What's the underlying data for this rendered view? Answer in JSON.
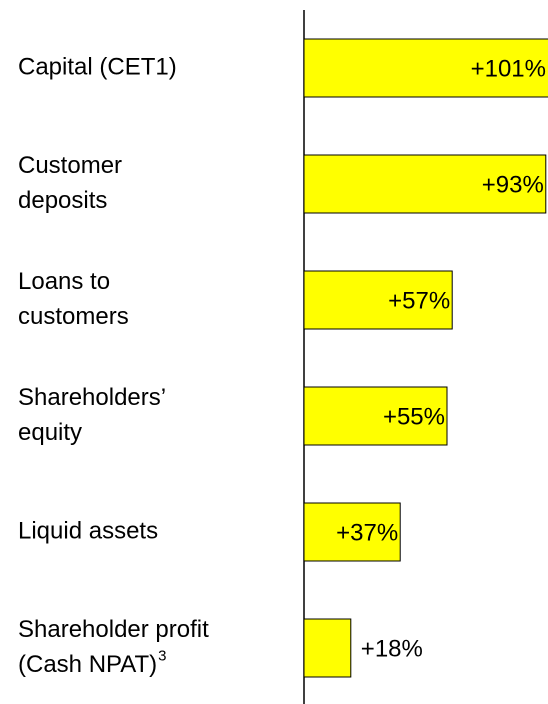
{
  "chart_data": {
    "type": "bar",
    "orientation": "horizontal",
    "categories": [
      [
        "Capital (CET1)"
      ],
      [
        "Customer",
        "deposits"
      ],
      [
        "Loans to",
        "customers"
      ],
      [
        "Shareholders’",
        "equity"
      ],
      [
        "Liquid assets"
      ],
      [
        "Shareholder profit",
        "(Cash NPAT)"
      ]
    ],
    "category_superscript": "3",
    "values": [
      101,
      93,
      57,
      55,
      37,
      18
    ],
    "value_labels": [
      "+101%",
      "+93%",
      "+57%",
      "+55%",
      "+37%",
      "+18%"
    ],
    "color": "#ffff00"
  }
}
